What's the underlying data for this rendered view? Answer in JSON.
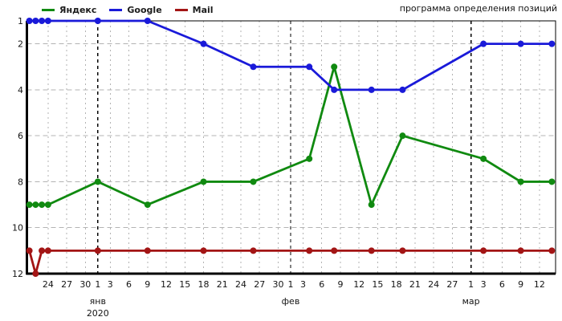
{
  "chart_data": {
    "type": "line",
    "title": "программа определения позиций",
    "legend_position": "top-left",
    "grid": true,
    "y_axis": {
      "inverted": true,
      "range": [
        1,
        12
      ],
      "ticks": [
        1,
        2,
        4,
        6,
        8,
        10,
        12
      ],
      "gridlines": [
        2,
        4,
        6,
        8,
        10
      ]
    },
    "x_axis": {
      "unit": "days relative to 2020-01-01",
      "range": [
        -11.4,
        73.6
      ],
      "year_label": "2020",
      "ticks": [
        {
          "label": "24",
          "day": -8
        },
        {
          "label": "27",
          "day": -5
        },
        {
          "label": "30",
          "day": -2
        },
        {
          "label": "1",
          "day": 0,
          "month": "янв",
          "year": "2020"
        },
        {
          "label": "3",
          "day": 2
        },
        {
          "label": "6",
          "day": 5
        },
        {
          "label": "9",
          "day": 8
        },
        {
          "label": "12",
          "day": 11
        },
        {
          "label": "15",
          "day": 14
        },
        {
          "label": "18",
          "day": 17
        },
        {
          "label": "21",
          "day": 20
        },
        {
          "label": "24",
          "day": 23
        },
        {
          "label": "27",
          "day": 26
        },
        {
          "label": "30",
          "day": 29
        },
        {
          "label": "1",
          "day": 31,
          "month": "фев"
        },
        {
          "label": "3",
          "day": 33
        },
        {
          "label": "6",
          "day": 36
        },
        {
          "label": "9",
          "day": 39
        },
        {
          "label": "12",
          "day": 42
        },
        {
          "label": "15",
          "day": 45
        },
        {
          "label": "18",
          "day": 48
        },
        {
          "label": "21",
          "day": 51
        },
        {
          "label": "24",
          "day": 54
        },
        {
          "label": "27",
          "day": 57
        },
        {
          "label": "1",
          "day": 60,
          "month": "мар"
        },
        {
          "label": "3",
          "day": 62
        },
        {
          "label": "6",
          "day": 65
        },
        {
          "label": "9",
          "day": 68
        },
        {
          "label": "12",
          "day": 71
        }
      ]
    },
    "x_dates": [
      "21.12.2019",
      "22.12.2019",
      "23.12.2019",
      "24.12.2019",
      "01.01.2020",
      "09.01.2020",
      "18.01.2020",
      "25.01.2020",
      "04.02.2020",
      "08.02.2020",
      "14.02.2020",
      "19.02.2020",
      "03.03.2020",
      "09.03.2020",
      "14.03.2020"
    ],
    "x_days": [
      -11,
      -10,
      -9,
      -8,
      0,
      8,
      17,
      25,
      34,
      38,
      44,
      49,
      62,
      68,
      73
    ],
    "series": [
      {
        "id": "yandex",
        "name": "Яндекс",
        "color": "#108a10",
        "values": [
          9,
          9,
          9,
          9,
          8,
          9,
          8,
          8,
          7,
          3,
          9,
          6,
          7,
          8,
          8
        ]
      },
      {
        "id": "google",
        "name": "Google",
        "color": "#1a1ad9",
        "values": [
          1,
          1,
          1,
          1,
          1,
          1,
          2,
          3,
          3,
          4,
          4,
          4,
          2,
          2,
          2
        ]
      },
      {
        "id": "mail",
        "name": "Mail",
        "color": "#a31515",
        "values": [
          11,
          12,
          11,
          11,
          11,
          11,
          11,
          11,
          11,
          11,
          11,
          11,
          11,
          11,
          11
        ]
      }
    ],
    "colors": {
      "grid": "#b3b3b3",
      "month_line": "#000000",
      "axis": "#000000",
      "text": "#141414",
      "background": "#ffffff"
    }
  }
}
